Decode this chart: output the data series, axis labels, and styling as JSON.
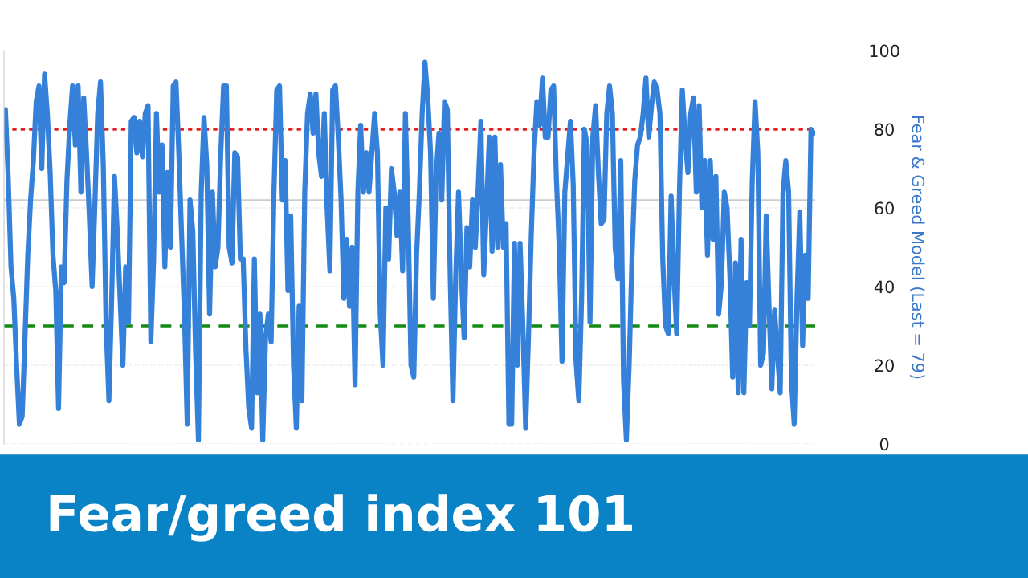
{
  "chart_data": {
    "type": "line",
    "title": "Fear/greed index 101",
    "ylabel": "Fear & Greed Model (Last = 79)",
    "categories": [
      null,
      null,
      null,
      null,
      null,
      null,
      null,
      null,
      null,
      null,
      null,
      null,
      null,
      null,
      null,
      null,
      null,
      null,
      null,
      null,
      null,
      null,
      null,
      null,
      null,
      null,
      null,
      null,
      null,
      null,
      null,
      null,
      null,
      null,
      null,
      null,
      null,
      null,
      null,
      null,
      null,
      null,
      null,
      null,
      null,
      null,
      null,
      null,
      null,
      null,
      null,
      null,
      null,
      null,
      null,
      null,
      null,
      null,
      null,
      null,
      null,
      null,
      null,
      null,
      null,
      null,
      null,
      null,
      null,
      null,
      null,
      null,
      null,
      null,
      null,
      null,
      null,
      null,
      null,
      null,
      null,
      null,
      null,
      null,
      null,
      null,
      null,
      null,
      null,
      null,
      null,
      null,
      null,
      null,
      null,
      null,
      null,
      null,
      null,
      null,
      null,
      null,
      null,
      null,
      null,
      null,
      null,
      null,
      null,
      null,
      null,
      null,
      null,
      null,
      null,
      null,
      null,
      null,
      null,
      null,
      null,
      null,
      null,
      null,
      null,
      null,
      null,
      null,
      null,
      null,
      null,
      null,
      null,
      null,
      null,
      null,
      null,
      null,
      null,
      null,
      null,
      null,
      null,
      null,
      null,
      null,
      null,
      null,
      null,
      null,
      null,
      null,
      null,
      null,
      null,
      null,
      null,
      null,
      null,
      null,
      null,
      null,
      null,
      null,
      null,
      null,
      null,
      null,
      null,
      null,
      null,
      null,
      null,
      null,
      null,
      null,
      null,
      null,
      null,
      null,
      null,
      null,
      null,
      null,
      null,
      null,
      null,
      null,
      null,
      null,
      null,
      null,
      null,
      null,
      null,
      null,
      null,
      null,
      null,
      null,
      null,
      null,
      null,
      null,
      null,
      null,
      null,
      null,
      null,
      null,
      null,
      null,
      null,
      null,
      null,
      null,
      null,
      null,
      null,
      null,
      null,
      null,
      null,
      null,
      null,
      null,
      null,
      null,
      null,
      null,
      null,
      null,
      null,
      null,
      null,
      null,
      null,
      null,
      null,
      null,
      null,
      null,
      null,
      null,
      null,
      null,
      null,
      null,
      null,
      null,
      null,
      null,
      null,
      null,
      null,
      null,
      null,
      null,
      null,
      null,
      null,
      null,
      null,
      null,
      null,
      null,
      null,
      null,
      null,
      null,
      null,
      null,
      null,
      null,
      null,
      null,
      null,
      null,
      null,
      null,
      null,
      null,
      null,
      null,
      null,
      null,
      null,
      null,
      null,
      null
    ],
    "series": [
      {
        "color": "#3580d8",
        "values": [
          85,
          68,
          45,
          37,
          20,
          5,
          7,
          27,
          48,
          62,
          72,
          87,
          91,
          70,
          94,
          84,
          69,
          48,
          39,
          9,
          45,
          41,
          67,
          81,
          91,
          76,
          91,
          64,
          88,
          74,
          58,
          40,
          61,
          84,
          92,
          71,
          30,
          11,
          37,
          68,
          54,
          37,
          20,
          45,
          31,
          82,
          83,
          74,
          82,
          73,
          84,
          86,
          26,
          47,
          84,
          64,
          76,
          45,
          69,
          50,
          91,
          92,
          74,
          53,
          33,
          5,
          62,
          54,
          23,
          1,
          64,
          83,
          71,
          33,
          64,
          45,
          50,
          74,
          91,
          91,
          50,
          46,
          74,
          73,
          47,
          47,
          24,
          9,
          4,
          47,
          13,
          33,
          1,
          27,
          33,
          26,
          64,
          90,
          91,
          62,
          72,
          39,
          58,
          20,
          4,
          35,
          11,
          64,
          84,
          89,
          79,
          89,
          74,
          68,
          84,
          60,
          44,
          90,
          91,
          78,
          62,
          37,
          52,
          35,
          50,
          15,
          64,
          81,
          64,
          74,
          64,
          74,
          84,
          74,
          33,
          20,
          60,
          47,
          70,
          64,
          53,
          64,
          44,
          84,
          57,
          20,
          17,
          48,
          64,
          84,
          97,
          88,
          74,
          37,
          69,
          79,
          62,
          87,
          85,
          43,
          11,
          43,
          64,
          43,
          27,
          55,
          45,
          62,
          50,
          65,
          82,
          43,
          60,
          78,
          49,
          78,
          50,
          71,
          50,
          56,
          5,
          5,
          51,
          20,
          51,
          30,
          4,
          27,
          53,
          74,
          87,
          81,
          93,
          78,
          78,
          90,
          91,
          67,
          50,
          21,
          64,
          73,
          82,
          66,
          21,
          11,
          37,
          80,
          76,
          31,
          78,
          86,
          69,
          56,
          57,
          84,
          91,
          84,
          50,
          42,
          72,
          16,
          1,
          20,
          47,
          67,
          76,
          78,
          84,
          93,
          78,
          86,
          92,
          90,
          84,
          47,
          30,
          28,
          63,
          43,
          28,
          65,
          90,
          78,
          69,
          84,
          88,
          64,
          86,
          60,
          72,
          48,
          72,
          52,
          68,
          33,
          41,
          64,
          60,
          43,
          17,
          46,
          13,
          52,
          13,
          41,
          30,
          67,
          87,
          74,
          20,
          23,
          58,
          35,
          14,
          34,
          23,
          13,
          64,
          72,
          64,
          16,
          5,
          37,
          59,
          25,
          48,
          37,
          80,
          79
        ]
      }
    ],
    "ylim": [
      0,
      100
    ],
    "yticks": [
      0,
      20,
      40,
      60,
      80,
      100
    ],
    "ref_lines": [
      {
        "axis": "y",
        "value": 80,
        "color": "#e02020",
        "line_style": "dotted"
      },
      {
        "axis": "y",
        "value": 30,
        "color": "#138a13",
        "line_style": "dashed"
      },
      {
        "axis": "y",
        "value": 62,
        "color": "#cccccc",
        "line_style": "solid"
      }
    ],
    "grid": "y",
    "marker": "none",
    "line_style": "solid",
    "legend": false
  }
}
